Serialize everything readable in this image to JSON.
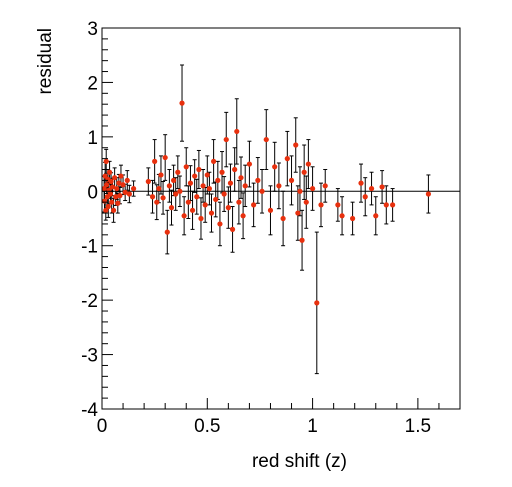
{
  "chart_data": {
    "type": "scatter",
    "title": "",
    "xlabel": "red shift (z)",
    "ylabel": "residual",
    "xlim": [
      0,
      1.7
    ],
    "ylim": [
      -4,
      3
    ],
    "x_ticks": [
      0,
      0.5,
      1,
      1.5
    ],
    "x_tick_labels": [
      "0",
      "0.5",
      "1",
      "1.5"
    ],
    "y_ticks": [
      -4,
      -3,
      -2,
      -1,
      0,
      1,
      2,
      3
    ],
    "y_tick_labels": [
      "-4",
      "-3",
      "-2",
      "-1",
      "0",
      "1",
      "2",
      "3"
    ],
    "zero_line": true,
    "grid": false,
    "legend": "none",
    "marker_color": "#e8300e",
    "errorbar_color": "#000000",
    "series": [
      {
        "points": [
          {
            "x": 0.01,
            "y": 0.05,
            "err": 0.22
          },
          {
            "x": 0.012,
            "y": -0.18,
            "err": 0.2
          },
          {
            "x": 0.015,
            "y": 0.28,
            "err": 0.25
          },
          {
            "x": 0.018,
            "y": -0.35,
            "err": 0.18
          },
          {
            "x": 0.02,
            "y": 0.55,
            "err": 0.22
          },
          {
            "x": 0.022,
            "y": 0.12,
            "err": 0.16
          },
          {
            "x": 0.025,
            "y": -0.1,
            "err": 0.2
          },
          {
            "x": 0.028,
            "y": 0.22,
            "err": 0.18
          },
          {
            "x": 0.03,
            "y": -0.28,
            "err": 0.2
          },
          {
            "x": 0.033,
            "y": 0.02,
            "err": 0.15
          },
          {
            "x": 0.036,
            "y": 0.35,
            "err": 0.2
          },
          {
            "x": 0.04,
            "y": -0.05,
            "err": 0.18
          },
          {
            "x": 0.043,
            "y": 0.18,
            "err": 0.16
          },
          {
            "x": 0.046,
            "y": -0.2,
            "err": 0.2
          },
          {
            "x": 0.05,
            "y": 0.08,
            "err": 0.16
          },
          {
            "x": 0.055,
            "y": -0.35,
            "err": 0.22
          },
          {
            "x": 0.06,
            "y": 0.25,
            "err": 0.18
          },
          {
            "x": 0.065,
            "y": -0.1,
            "err": 0.16
          },
          {
            "x": 0.07,
            "y": 0.05,
            "err": 0.2
          },
          {
            "x": 0.075,
            "y": -0.22,
            "err": 0.18
          },
          {
            "x": 0.08,
            "y": 0.15,
            "err": 0.16
          },
          {
            "x": 0.085,
            "y": -0.08,
            "err": 0.15
          },
          {
            "x": 0.09,
            "y": 0.28,
            "err": 0.2
          },
          {
            "x": 0.1,
            "y": 0.12,
            "err": 0.18
          },
          {
            "x": 0.11,
            "y": -0.02,
            "err": 0.15
          },
          {
            "x": 0.12,
            "y": 0.2,
            "err": 0.18
          },
          {
            "x": 0.13,
            "y": -0.05,
            "err": 0.16
          },
          {
            "x": 0.15,
            "y": 0.05,
            "err": 0.14
          },
          {
            "x": 0.22,
            "y": 0.18,
            "err": 0.25
          },
          {
            "x": 0.24,
            "y": -0.1,
            "err": 0.3
          },
          {
            "x": 0.25,
            "y": 0.55,
            "err": 0.4
          },
          {
            "x": 0.26,
            "y": -0.2,
            "err": 0.32
          },
          {
            "x": 0.27,
            "y": 0.05,
            "err": 0.26
          },
          {
            "x": 0.28,
            "y": 0.3,
            "err": 0.35
          },
          {
            "x": 0.29,
            "y": -0.12,
            "err": 0.3
          },
          {
            "x": 0.3,
            "y": 0.62,
            "err": 0.42
          },
          {
            "x": 0.31,
            "y": -0.75,
            "err": 0.4
          },
          {
            "x": 0.32,
            "y": 0.1,
            "err": 0.3
          },
          {
            "x": 0.33,
            "y": -0.3,
            "err": 0.32
          },
          {
            "x": 0.34,
            "y": 0.2,
            "err": 0.28
          },
          {
            "x": 0.35,
            "y": -0.05,
            "err": 0.3
          },
          {
            "x": 0.36,
            "y": 0.35,
            "err": 0.3
          },
          {
            "x": 0.37,
            "y": 0.0,
            "err": 0.28
          },
          {
            "x": 0.38,
            "y": 1.62,
            "err": 0.7
          },
          {
            "x": 0.39,
            "y": -0.45,
            "err": 0.35
          },
          {
            "x": 0.4,
            "y": 0.45,
            "err": 0.35
          },
          {
            "x": 0.41,
            "y": -0.2,
            "err": 0.3
          },
          {
            "x": 0.42,
            "y": 0.15,
            "err": 0.32
          },
          {
            "x": 0.43,
            "y": -0.35,
            "err": 0.35
          },
          {
            "x": 0.44,
            "y": 0.28,
            "err": 0.3
          },
          {
            "x": 0.45,
            "y": -0.1,
            "err": 0.32
          },
          {
            "x": 0.46,
            "y": 0.4,
            "err": 0.35
          },
          {
            "x": 0.47,
            "y": -0.5,
            "err": 0.38
          },
          {
            "x": 0.48,
            "y": 0.1,
            "err": 0.3
          },
          {
            "x": 0.49,
            "y": -0.25,
            "err": 0.32
          },
          {
            "x": 0.5,
            "y": 0.3,
            "err": 0.35
          },
          {
            "x": 0.51,
            "y": 0.05,
            "err": 0.3
          },
          {
            "x": 0.52,
            "y": -0.4,
            "err": 0.35
          },
          {
            "x": 0.53,
            "y": 0.55,
            "err": 0.4
          },
          {
            "x": 0.54,
            "y": -0.15,
            "err": 0.32
          },
          {
            "x": 0.55,
            "y": 0.2,
            "err": 0.35
          },
          {
            "x": 0.56,
            "y": -0.6,
            "err": 0.4
          },
          {
            "x": 0.57,
            "y": 0.35,
            "err": 0.38
          },
          {
            "x": 0.58,
            "y": -0.05,
            "err": 0.32
          },
          {
            "x": 0.59,
            "y": 0.95,
            "err": 0.5
          },
          {
            "x": 0.6,
            "y": -0.3,
            "err": 0.38
          },
          {
            "x": 0.61,
            "y": 0.15,
            "err": 0.35
          },
          {
            "x": 0.62,
            "y": -0.7,
            "err": 0.42
          },
          {
            "x": 0.63,
            "y": 0.4,
            "err": 0.4
          },
          {
            "x": 0.64,
            "y": 1.1,
            "err": 0.6
          },
          {
            "x": 0.65,
            "y": -0.2,
            "err": 0.4
          },
          {
            "x": 0.66,
            "y": 0.25,
            "err": 0.38
          },
          {
            "x": 0.67,
            "y": -0.45,
            "err": 0.42
          },
          {
            "x": 0.68,
            "y": 0.1,
            "err": 0.38
          },
          {
            "x": 0.7,
            "y": 0.5,
            "err": 0.42
          },
          {
            "x": 0.72,
            "y": -0.25,
            "err": 0.4
          },
          {
            "x": 0.74,
            "y": 0.2,
            "err": 0.42
          },
          {
            "x": 0.76,
            "y": 0.0,
            "err": 0.4
          },
          {
            "x": 0.78,
            "y": 0.95,
            "err": 0.55
          },
          {
            "x": 0.8,
            "y": -0.35,
            "err": 0.45
          },
          {
            "x": 0.82,
            "y": 0.45,
            "err": 0.45
          },
          {
            "x": 0.84,
            "y": 0.1,
            "err": 0.42
          },
          {
            "x": 0.86,
            "y": -0.5,
            "err": 0.5
          },
          {
            "x": 0.88,
            "y": 0.6,
            "err": 0.5
          },
          {
            "x": 0.9,
            "y": 0.2,
            "err": 0.45
          },
          {
            "x": 0.92,
            "y": 0.85,
            "err": 0.5
          },
          {
            "x": 0.93,
            "y": -0.4,
            "err": 0.5
          },
          {
            "x": 0.94,
            "y": 0.0,
            "err": 0.45
          },
          {
            "x": 0.95,
            "y": -0.9,
            "err": 0.55
          },
          {
            "x": 0.96,
            "y": 0.35,
            "err": 0.5
          },
          {
            "x": 0.97,
            "y": -0.2,
            "err": 0.48
          },
          {
            "x": 0.98,
            "y": 0.5,
            "err": 0.45
          },
          {
            "x": 1.0,
            "y": 0.05,
            "err": 0.4
          },
          {
            "x": 1.02,
            "y": -2.05,
            "err": 1.3
          },
          {
            "x": 1.04,
            "y": -0.25,
            "err": 0.4
          },
          {
            "x": 1.06,
            "y": 0.1,
            "err": 0.3
          },
          {
            "x": 1.12,
            "y": -0.25,
            "err": 0.3
          },
          {
            "x": 1.14,
            "y": -0.45,
            "err": 0.35
          },
          {
            "x": 1.19,
            "y": -0.5,
            "err": 0.3
          },
          {
            "x": 1.23,
            "y": 0.15,
            "err": 0.35
          },
          {
            "x": 1.25,
            "y": -0.1,
            "err": 0.35
          },
          {
            "x": 1.28,
            "y": 0.05,
            "err": 0.3
          },
          {
            "x": 1.3,
            "y": -0.45,
            "err": 0.35
          },
          {
            "x": 1.33,
            "y": 0.08,
            "err": 0.3
          },
          {
            "x": 1.35,
            "y": -0.25,
            "err": 0.35
          },
          {
            "x": 1.38,
            "y": -0.25,
            "err": 0.3
          },
          {
            "x": 1.55,
            "y": -0.05,
            "err": 0.35
          }
        ]
      }
    ]
  }
}
